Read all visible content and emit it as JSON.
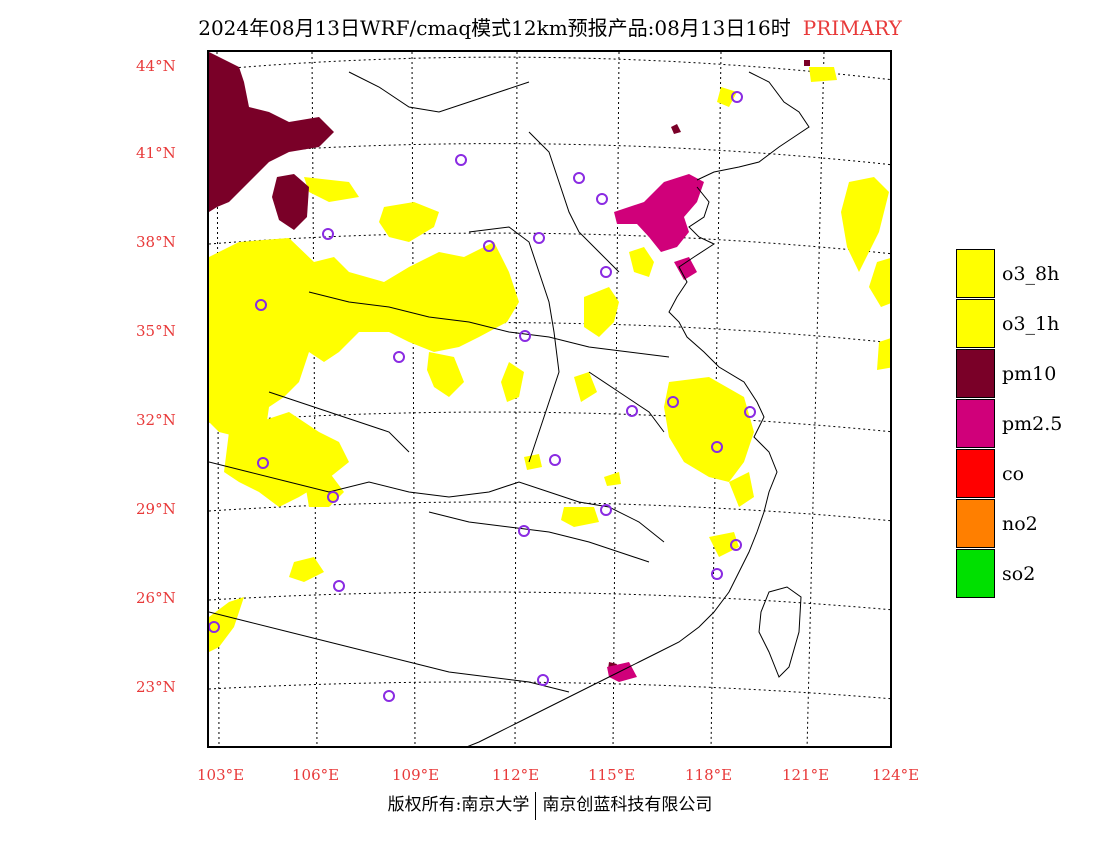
{
  "title": {
    "main": "2024年08月13日WRF/cmaq模式12km预报产品:08月13日16时",
    "tag": "PRIMARY"
  },
  "colors": {
    "o3_8h": "#ffff00",
    "o3_1h": "#ffff00",
    "pm10": "#7a0028",
    "pm25": "#d0007a",
    "co": "#ff0000",
    "no2": "#ff7f00",
    "so2": "#00e000",
    "station": "#8a2be2",
    "label": "#e83a3a"
  },
  "lat_labels": [
    "44°N",
    "41°N",
    "38°N",
    "35°N",
    "32°N",
    "29°N",
    "26°N",
    "23°N"
  ],
  "lon_labels": [
    "103°E",
    "106°E",
    "109°E",
    "112°E",
    "115°E",
    "118°E",
    "121°E",
    "124°E"
  ],
  "legend": [
    {
      "label": "o3_8h",
      "color": "#ffff00"
    },
    {
      "label": "o3_1h",
      "color": "#ffff00"
    },
    {
      "label": "pm10",
      "color": "#7a0028"
    },
    {
      "label": "pm2.5",
      "color": "#d0007a"
    },
    {
      "label": "co",
      "color": "#ff0000"
    },
    {
      "label": "no2",
      "color": "#ff7f00"
    },
    {
      "label": "so2",
      "color": "#00e000"
    }
  ],
  "copyright": {
    "left": "版权所有:南京大学",
    "right": "南京创蓝科技有限公司"
  }
}
